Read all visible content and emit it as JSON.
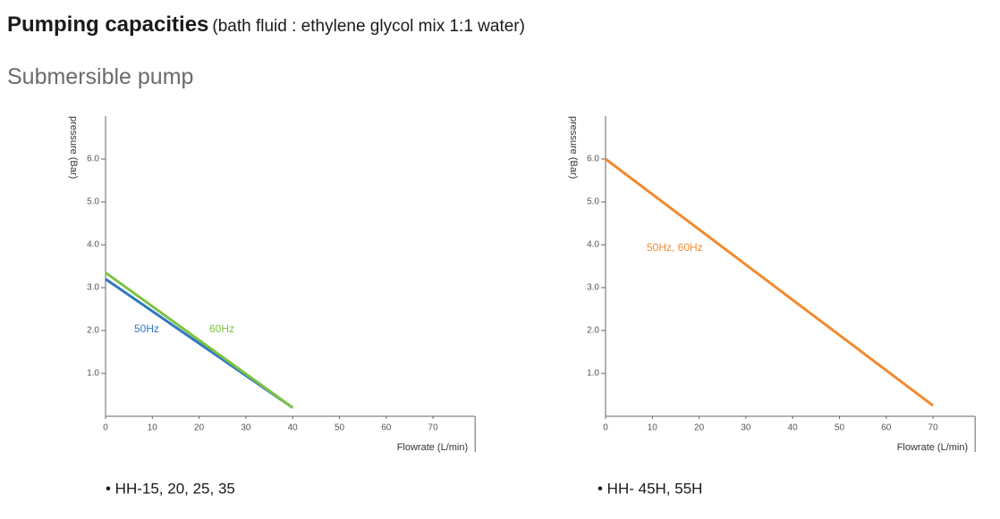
{
  "header": {
    "title": "Pumping capacities",
    "subtitle": "(bath fluid : ethylene glycol mix 1:1 water)",
    "section": "Submersible pump"
  },
  "chart_data": [
    {
      "type": "line",
      "ylabel": "pressure (Bar)",
      "xlabel": "Flowrate (L/min)",
      "caption": "• HH-15, 20, 25, 35",
      "xlim": [
        0,
        79
      ],
      "xticks": [
        0,
        10,
        20,
        30,
        40,
        50,
        60,
        70
      ],
      "ylim": [
        0,
        7
      ],
      "yticks": [
        {
          "value": 1,
          "label": "1.0"
        },
        {
          "value": 2,
          "label": "2.0"
        },
        {
          "value": 3,
          "label": "3.0"
        },
        {
          "value": 4,
          "label": "4.0"
        },
        {
          "value": 5,
          "label": "5.0"
        },
        {
          "value": 6,
          "label": "6.0"
        }
      ],
      "series": [
        {
          "name": "50Hz",
          "color": "#2f78c0",
          "x": [
            0,
            40
          ],
          "values": [
            3.2,
            0.2
          ]
        },
        {
          "name": "60Hz",
          "color": "#7dc242",
          "x": [
            0,
            40
          ],
          "values": [
            3.35,
            0.2
          ]
        }
      ]
    },
    {
      "type": "line",
      "ylabel": "pressure (Bar)",
      "xlabel": "Flowrate (L/min)",
      "caption": "• HH- 45H, 55H",
      "xlim": [
        0,
        79
      ],
      "xticks": [
        0,
        10,
        20,
        30,
        40,
        50,
        60,
        70
      ],
      "ylim": [
        0,
        7
      ],
      "yticks": [
        {
          "value": 1,
          "label": "1.0"
        },
        {
          "value": 2,
          "label": "2.0"
        },
        {
          "value": 3,
          "label": "3.0"
        },
        {
          "value": 4,
          "label": "4.0"
        },
        {
          "value": 5,
          "label": "5.0"
        },
        {
          "value": 6,
          "label": "6.0"
        }
      ],
      "series": [
        {
          "name": "50Hz, 60Hz",
          "color": "#f28a2e",
          "x": [
            0,
            70
          ],
          "values": [
            6.0,
            0.25
          ]
        }
      ]
    }
  ]
}
